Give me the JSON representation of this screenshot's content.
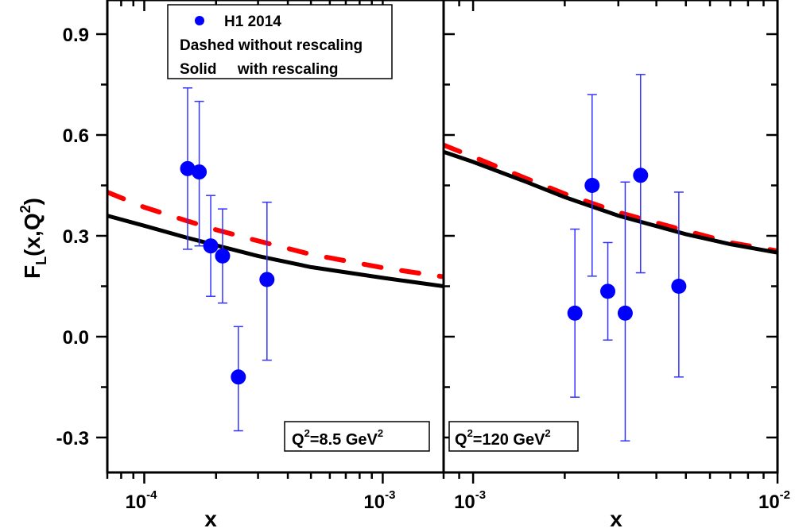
{
  "chart_data": [
    {
      "type": "scatter",
      "panel": "left",
      "annotation": {
        "base": "Q",
        "sup1": "2",
        "mid": "=8.5 GeV",
        "sup2": "2"
      },
      "xscale": "log",
      "xlim": [
        7e-05,
        0.0018
      ],
      "ylim": [
        -0.42,
        1.0
      ],
      "xticks": [
        {
          "value": 0.0001,
          "base": "10",
          "exp": "-4"
        },
        {
          "value": 0.001,
          "base": "10",
          "exp": "-3"
        }
      ],
      "xlabel": "x",
      "series": [
        {
          "name": "H1 2014",
          "kind": "points",
          "color": "#0000ff",
          "points": [
            {
              "x": 0.000152,
              "y": 0.5,
              "yhi": 0.74,
              "ylo": 0.26
            },
            {
              "x": 0.00017,
              "y": 0.49,
              "yhi": 0.7,
              "ylo": 0.27
            },
            {
              "x": 0.00019,
              "y": 0.27,
              "yhi": 0.42,
              "ylo": 0.12
            },
            {
              "x": 0.000213,
              "y": 0.24,
              "yhi": 0.38,
              "ylo": 0.1
            },
            {
              "x": 0.000248,
              "y": -0.12,
              "yhi": 0.03,
              "ylo": -0.28
            },
            {
              "x": 0.000327,
              "y": 0.17,
              "yhi": 0.4,
              "ylo": -0.07
            }
          ]
        },
        {
          "name": "without rescaling",
          "kind": "dashed",
          "color": "#ff0000",
          "points": [
            {
              "x": 7e-05,
              "y": 0.43
            },
            {
              "x": 0.0001,
              "y": 0.385
            },
            {
              "x": 0.00015,
              "y": 0.345
            },
            {
              "x": 0.0002,
              "y": 0.318
            },
            {
              "x": 0.0003,
              "y": 0.285
            },
            {
              "x": 0.0005,
              "y": 0.245
            },
            {
              "x": 0.001,
              "y": 0.205
            },
            {
              "x": 0.0018,
              "y": 0.178
            }
          ]
        },
        {
          "name": "with rescaling",
          "kind": "solid",
          "color": "#000000",
          "points": [
            {
              "x": 7e-05,
              "y": 0.36
            },
            {
              "x": 0.0001,
              "y": 0.33
            },
            {
              "x": 0.00015,
              "y": 0.295
            },
            {
              "x": 0.0002,
              "y": 0.272
            },
            {
              "x": 0.0003,
              "y": 0.24
            },
            {
              "x": 0.0005,
              "y": 0.207
            },
            {
              "x": 0.001,
              "y": 0.175
            },
            {
              "x": 0.0018,
              "y": 0.15
            }
          ]
        }
      ]
    },
    {
      "type": "scatter",
      "panel": "right",
      "annotation": {
        "base": "Q",
        "sup1": "2",
        "mid": "=120 GeV",
        "sup2": "2"
      },
      "xscale": "log",
      "xlim": [
        0.0008,
        0.01
      ],
      "ylim": [
        -0.42,
        1.0
      ],
      "xticks": [
        {
          "value": 0.001,
          "base": "10",
          "exp": "-3"
        },
        {
          "value": 0.01,
          "base": "10",
          "exp": "-2"
        }
      ],
      "xlabel": "x",
      "series": [
        {
          "name": "H1 2014",
          "kind": "points",
          "color": "#0000ff",
          "points": [
            {
              "x": 0.00216,
              "y": 0.07,
              "yhi": 0.32,
              "ylo": -0.18
            },
            {
              "x": 0.00246,
              "y": 0.45,
              "yhi": 0.72,
              "ylo": 0.18
            },
            {
              "x": 0.00277,
              "y": 0.135,
              "yhi": 0.28,
              "ylo": -0.01
            },
            {
              "x": 0.00316,
              "y": 0.07,
              "yhi": 0.46,
              "ylo": -0.31
            },
            {
              "x": 0.00355,
              "y": 0.48,
              "yhi": 0.78,
              "ylo": 0.19
            },
            {
              "x": 0.00474,
              "y": 0.15,
              "yhi": 0.43,
              "ylo": -0.12
            }
          ]
        },
        {
          "name": "without rescaling",
          "kind": "dashed",
          "color": "#ff0000",
          "points": [
            {
              "x": 0.0008,
              "y": 0.57
            },
            {
              "x": 0.001,
              "y": 0.535
            },
            {
              "x": 0.0015,
              "y": 0.47
            },
            {
              "x": 0.002,
              "y": 0.425
            },
            {
              "x": 0.003,
              "y": 0.37
            },
            {
              "x": 0.005,
              "y": 0.315
            },
            {
              "x": 0.007,
              "y": 0.28
            },
            {
              "x": 0.01,
              "y": 0.255
            }
          ]
        },
        {
          "name": "with rescaling",
          "kind": "solid",
          "color": "#000000",
          "points": [
            {
              "x": 0.0008,
              "y": 0.55
            },
            {
              "x": 0.001,
              "y": 0.52
            },
            {
              "x": 0.0015,
              "y": 0.46
            },
            {
              "x": 0.002,
              "y": 0.415
            },
            {
              "x": 0.003,
              "y": 0.36
            },
            {
              "x": 0.005,
              "y": 0.305
            },
            {
              "x": 0.007,
              "y": 0.275
            },
            {
              "x": 0.01,
              "y": 0.25
            }
          ]
        }
      ]
    }
  ],
  "yaxis": {
    "label_base": "F",
    "label_sub": "L",
    "label_rest": "(x,Q",
    "label_sup": "2",
    "label_close": ")",
    "ticks": [
      {
        "value": 0.9,
        "label": "0.9"
      },
      {
        "value": 0.6,
        "label": "0.6"
      },
      {
        "value": 0.3,
        "label": "0.3"
      },
      {
        "value": 0.0,
        "label": "0.0"
      },
      {
        "value": -0.3,
        "label": "-0.3"
      }
    ],
    "minor_step": 0.15
  },
  "legend": {
    "entries": [
      "H1 2014",
      "Dashed without rescaling",
      "Solid     with rescaling"
    ],
    "marker_color": "#0000ff",
    "placement": "top-left panel, upper center"
  },
  "colors": {
    "data": "#0000ff",
    "errorbar": "#3333ff",
    "dashed": "#ff0000",
    "solid": "#000000"
  }
}
